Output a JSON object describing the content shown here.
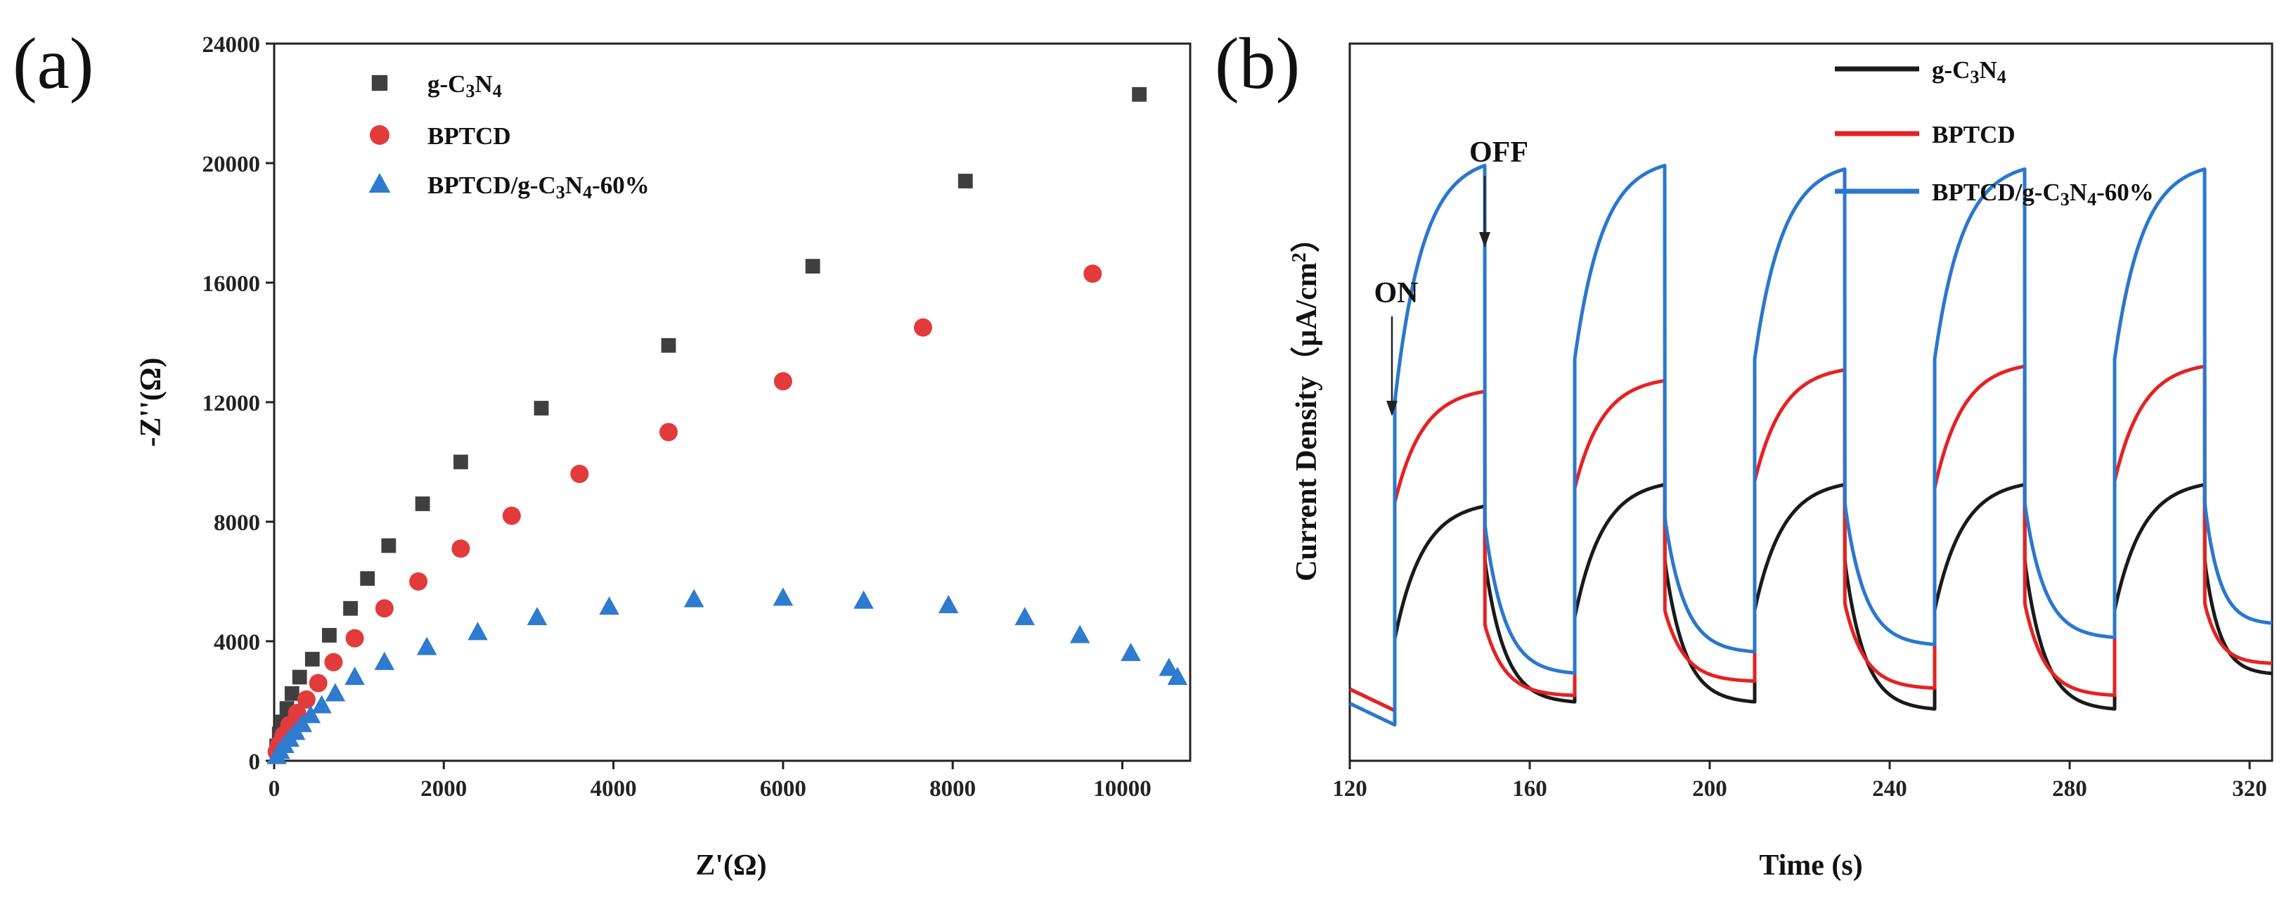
{
  "chart_data": [
    {
      "type": "scatter",
      "panel_label": "(a)",
      "title": "",
      "xlabel": "Z'(Ω)",
      "ylabel": "-Z''(Ω)",
      "xlim": [
        0,
        10800
      ],
      "ylim": [
        0,
        24000
      ],
      "x_ticks": [
        "0",
        "2000",
        "4000",
        "6000",
        "8000",
        "10000"
      ],
      "y_ticks": [
        "0",
        "4000",
        "8000",
        "12000",
        "16000",
        "20000",
        "24000"
      ],
      "legend_position": "top-left",
      "series": [
        {
          "name": "g-C3N4",
          "label_main": "g-C",
          "sub1": "3",
          "mid": "N",
          "sub2": "4",
          "tail": "",
          "marker": "square",
          "color": "#3f3f3f",
          "points": [
            [
              30,
              500
            ],
            [
              60,
              900
            ],
            [
              100,
              1300
            ],
            [
              150,
              1750
            ],
            [
              210,
              2250
            ],
            [
              300,
              2800
            ],
            [
              450,
              3400
            ],
            [
              650,
              4200
            ],
            [
              900,
              5100
            ],
            [
              1100,
              6100
            ],
            [
              1350,
              7200
            ],
            [
              1750,
              8600
            ],
            [
              2200,
              10000
            ],
            [
              3150,
              11800
            ],
            [
              4650,
              13900
            ],
            [
              6350,
              16550
            ],
            [
              8150,
              19400
            ],
            [
              10200,
              22300
            ]
          ]
        },
        {
          "name": "BPTCD",
          "label_main": "BPTCD",
          "sub1": "",
          "mid": "",
          "sub2": "",
          "tail": "",
          "marker": "circle",
          "color": "#e23b3b",
          "points": [
            [
              30,
              300
            ],
            [
              60,
              550
            ],
            [
              110,
              850
            ],
            [
              180,
              1200
            ],
            [
              270,
              1600
            ],
            [
              380,
              2050
            ],
            [
              520,
              2600
            ],
            [
              700,
              3300
            ],
            [
              950,
              4100
            ],
            [
              1300,
              5100
            ],
            [
              1700,
              6000
            ],
            [
              2200,
              7100
            ],
            [
              2800,
              8200
            ],
            [
              3600,
              9600
            ],
            [
              4650,
              11000
            ],
            [
              6000,
              12700
            ],
            [
              7650,
              14500
            ],
            [
              9650,
              16300
            ]
          ]
        },
        {
          "name": "BPTCD/g-C3N4-60%",
          "label_main": "BPTCD/g-C",
          "sub1": "3",
          "mid": "N",
          "sub2": "4",
          "tail": "-60%",
          "marker": "triangle",
          "color": "#2e7bd0",
          "points": [
            [
              30,
              150
            ],
            [
              70,
              320
            ],
            [
              120,
              520
            ],
            [
              180,
              730
            ],
            [
              250,
              960
            ],
            [
              330,
              1220
            ],
            [
              430,
              1520
            ],
            [
              560,
              1850
            ],
            [
              720,
              2250
            ],
            [
              950,
              2800
            ],
            [
              1300,
              3300
            ],
            [
              1800,
              3800
            ],
            [
              2400,
              4300
            ],
            [
              3100,
              4800
            ],
            [
              3950,
              5150
            ],
            [
              4950,
              5400
            ],
            [
              6000,
              5450
            ],
            [
              6950,
              5350
            ],
            [
              7950,
              5200
            ],
            [
              8850,
              4800
            ],
            [
              9500,
              4200
            ],
            [
              10100,
              3600
            ],
            [
              10550,
              3100
            ],
            [
              10650,
              2800
            ]
          ]
        }
      ]
    },
    {
      "type": "line",
      "panel_label": "(b)",
      "title": "",
      "xlabel": "Time (s)",
      "ylabel": "Current Density（μA/cm",
      "ylabel_sup": "2",
      "ylabel_end": "）",
      "xlim": [
        120,
        325
      ],
      "ylim": [
        0,
        1
      ],
      "x_ticks": [
        "120",
        "160",
        "200",
        "240",
        "280",
        "320"
      ],
      "legend_position": "top-right",
      "annotations": [
        {
          "text": "ON",
          "x": 130,
          "y": 0.45
        },
        {
          "text": "OFF",
          "x": 150,
          "y": 0.9
        }
      ],
      "light_on_times": [
        130,
        170,
        210,
        250,
        290
      ],
      "light_off_times": [
        150,
        190,
        230,
        270,
        310
      ],
      "series": [
        {
          "name": "g-C3N4",
          "label_main": "g-C",
          "sub1": "3",
          "mid": "N",
          "sub2": "4",
          "tail": "",
          "color": "#1a1a1a",
          "initial": 0.1,
          "on_jump": [
            0.17,
            0.2,
            0.21,
            0.21,
            0.21
          ],
          "on_peak": [
            0.355,
            0.385,
            0.385,
            0.385,
            0.385
          ],
          "off_after": [
            0.28,
            0.28,
            0.28,
            0.28,
            0.28
          ],
          "off_end": [
            0.07,
            0.08,
            0.08,
            0.07,
            0.07
          ],
          "tail_end": 0.12
        },
        {
          "name": "BPTCD",
          "label_main": "BPTCD",
          "sub1": "",
          "mid": "",
          "sub2": "",
          "tail": "",
          "color": "#e52222",
          "initial": 0.1,
          "on_jump": [
            0.36,
            0.38,
            0.39,
            0.38,
            0.39
          ],
          "on_peak": [
            0.515,
            0.53,
            0.545,
            0.55,
            0.55
          ],
          "off_after": [
            0.19,
            0.21,
            0.22,
            0.22,
            0.22
          ],
          "off_end": [
            0.07,
            0.09,
            0.11,
            0.1,
            0.09
          ],
          "tail_end": 0.135
        },
        {
          "name": "BPTCD/g-C3N4-60%",
          "label_main": "BPTCD/g-C",
          "sub1": "3",
          "mid": "N",
          "sub2": "4",
          "tail": "-60%",
          "color": "#2a77cf",
          "initial": 0.08,
          "on_jump": [
            0.5,
            0.56,
            0.56,
            0.56,
            0.56
          ],
          "on_peak": [
            0.83,
            0.83,
            0.825,
            0.825,
            0.825
          ],
          "off_after": [
            0.33,
            0.34,
            0.36,
            0.36,
            0.36
          ],
          "off_end": [
            0.07,
            0.12,
            0.15,
            0.16,
            0.17
          ],
          "tail_end": 0.19
        }
      ]
    }
  ]
}
